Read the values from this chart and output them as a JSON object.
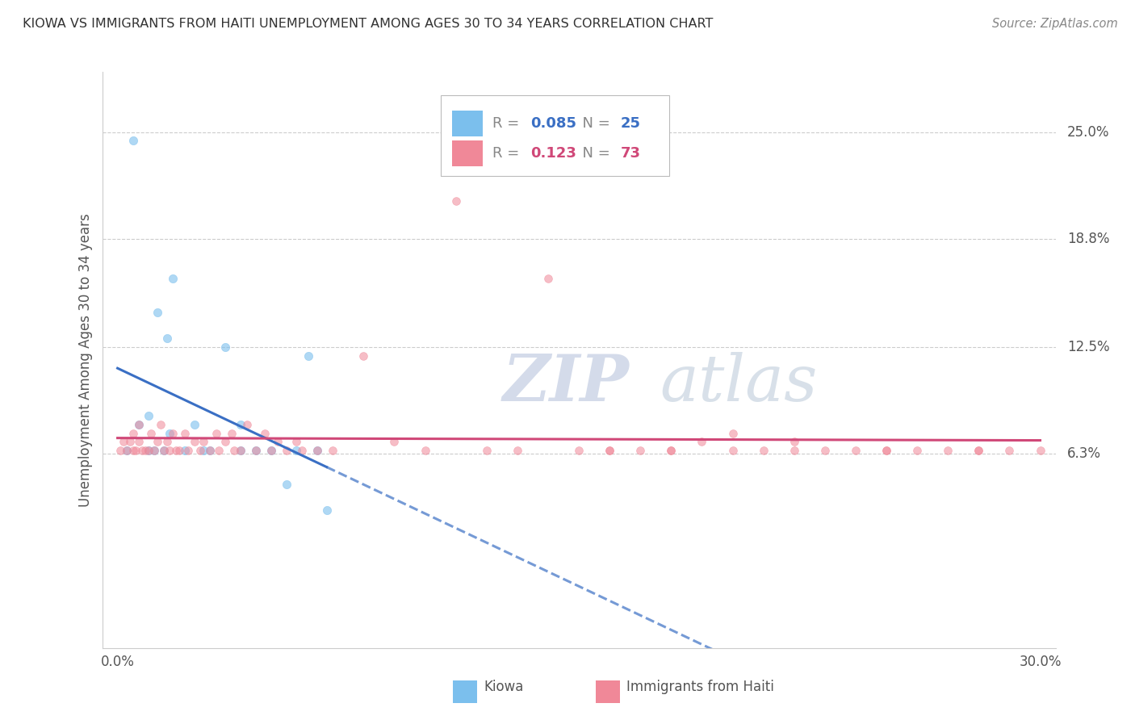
{
  "title": "KIOWA VS IMMIGRANTS FROM HAITI UNEMPLOYMENT AMONG AGES 30 TO 34 YEARS CORRELATION CHART",
  "source": "Source: ZipAtlas.com",
  "ylabel": "Unemployment Among Ages 30 to 34 years",
  "y_tick_values": [
    0.063,
    0.125,
    0.188,
    0.25
  ],
  "y_tick_labels": [
    "6.3%",
    "12.5%",
    "18.8%",
    "25.0%"
  ],
  "xlim": [
    0.0,
    0.3
  ],
  "ylim": [
    -0.05,
    0.285
  ],
  "legend_label1": "Kiowa",
  "legend_label2": "Immigrants from Haiti",
  "R1": "0.085",
  "N1": "25",
  "R2": "0.123",
  "N2": "73",
  "color1": "#7BBFED",
  "color2": "#F08898",
  "trend_color1": "#3A6FC4",
  "trend_color2": "#D04878",
  "watermark_zip": "ZIP",
  "watermark_atlas": "atlas",
  "kiowa_x": [
    0.003,
    0.005,
    0.007,
    0.01,
    0.01,
    0.012,
    0.013,
    0.015,
    0.016,
    0.017,
    0.018,
    0.022,
    0.025,
    0.028,
    0.03,
    0.035,
    0.04,
    0.04,
    0.045,
    0.05,
    0.055,
    0.058,
    0.062,
    0.065,
    0.068
  ],
  "kiowa_y": [
    0.065,
    0.245,
    0.08,
    0.065,
    0.085,
    0.065,
    0.145,
    0.065,
    0.13,
    0.075,
    0.165,
    0.065,
    0.08,
    0.065,
    0.065,
    0.125,
    0.065,
    0.08,
    0.065,
    0.065,
    0.045,
    0.065,
    0.12,
    0.065,
    0.03
  ],
  "haiti_x": [
    0.001,
    0.002,
    0.003,
    0.004,
    0.005,
    0.005,
    0.006,
    0.007,
    0.007,
    0.008,
    0.009,
    0.01,
    0.011,
    0.012,
    0.013,
    0.014,
    0.015,
    0.016,
    0.017,
    0.018,
    0.019,
    0.02,
    0.022,
    0.023,
    0.025,
    0.027,
    0.028,
    0.03,
    0.032,
    0.033,
    0.035,
    0.037,
    0.038,
    0.04,
    0.042,
    0.045,
    0.048,
    0.05,
    0.052,
    0.055,
    0.058,
    0.06,
    0.065,
    0.07,
    0.08,
    0.09,
    0.1,
    0.11,
    0.12,
    0.13,
    0.14,
    0.15,
    0.16,
    0.17,
    0.18,
    0.19,
    0.2,
    0.21,
    0.22,
    0.23,
    0.24,
    0.25,
    0.26,
    0.27,
    0.28,
    0.29,
    0.3,
    0.2,
    0.22,
    0.16,
    0.18,
    0.25,
    0.28
  ],
  "haiti_y": [
    0.065,
    0.07,
    0.065,
    0.07,
    0.065,
    0.075,
    0.065,
    0.07,
    0.08,
    0.065,
    0.065,
    0.065,
    0.075,
    0.065,
    0.07,
    0.08,
    0.065,
    0.07,
    0.065,
    0.075,
    0.065,
    0.065,
    0.075,
    0.065,
    0.07,
    0.065,
    0.07,
    0.065,
    0.075,
    0.065,
    0.07,
    0.075,
    0.065,
    0.065,
    0.08,
    0.065,
    0.075,
    0.065,
    0.07,
    0.065,
    0.07,
    0.065,
    0.065,
    0.065,
    0.12,
    0.07,
    0.065,
    0.21,
    0.065,
    0.065,
    0.165,
    0.065,
    0.065,
    0.065,
    0.065,
    0.07,
    0.065,
    0.065,
    0.065,
    0.065,
    0.065,
    0.065,
    0.065,
    0.065,
    0.065,
    0.065,
    0.065,
    0.075,
    0.07,
    0.065,
    0.065,
    0.065,
    0.065
  ]
}
